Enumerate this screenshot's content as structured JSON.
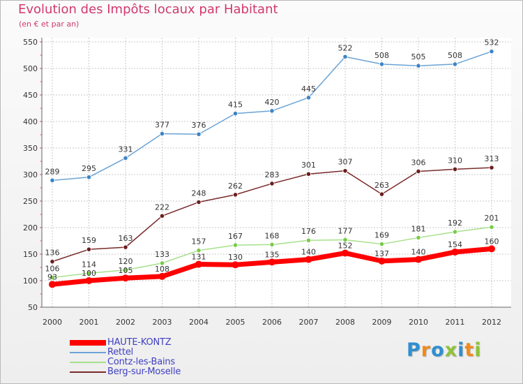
{
  "title": "Evolution des Impôts locaux par Habitant",
  "subtitle": "(en € et par an)",
  "logo": {
    "text": "Proxiti",
    "letters": [
      {
        "ch": "P",
        "color": "#2f8fd0"
      },
      {
        "ch": "r",
        "color": "#f08a1c"
      },
      {
        "ch": "o",
        "color": "#2f8fd0"
      },
      {
        "ch": "x",
        "color": "#8fc238"
      },
      {
        "ch": "i",
        "color": "#2f8fd0"
      },
      {
        "ch": "t",
        "color": "#f08a1c"
      },
      {
        "ch": "i",
        "color": "#8fc238"
      }
    ]
  },
  "chart_data": {
    "type": "line",
    "title": "Evolution des Impôts locaux par Habitant",
    "subtitle": "(en € et par an)",
    "xlabel": "",
    "ylabel": "",
    "x": [
      "2000",
      "2001",
      "2002",
      "2003",
      "2004",
      "2005",
      "2006",
      "2007",
      "2008",
      "2009",
      "2010",
      "2011",
      "2012"
    ],
    "y_ticks": [
      50,
      100,
      150,
      200,
      250,
      300,
      350,
      400,
      450,
      500,
      550
    ],
    "ylim": [
      50,
      550
    ],
    "grid": true,
    "legend_position": "bottom-left",
    "series": [
      {
        "name": "HAUTE-KONTZ",
        "color": "#ff0000",
        "marker": "#ff0000",
        "width": "thick",
        "values": [
          93,
          100,
          105,
          108,
          131,
          130,
          135,
          140,
          152,
          137,
          140,
          154,
          160
        ]
      },
      {
        "name": "Rettel",
        "color": "#6aa3d5",
        "marker": "#3d85c6",
        "width": "thin",
        "values": [
          289,
          295,
          331,
          377,
          376,
          415,
          420,
          445,
          522,
          508,
          505,
          508,
          532
        ]
      },
      {
        "name": "Contz-les-Bains",
        "color": "#a6e08a",
        "marker": "#78cc48",
        "width": "thin",
        "values": [
          106,
          114,
          120,
          133,
          157,
          167,
          168,
          176,
          177,
          169,
          181,
          192,
          201
        ]
      },
      {
        "name": "Berg-sur-Moselle",
        "color": "#7a2a2a",
        "marker": "#6b1f1f",
        "width": "thin",
        "values": [
          136,
          159,
          163,
          222,
          248,
          262,
          283,
          301,
          307,
          263,
          306,
          310,
          313
        ]
      }
    ]
  }
}
